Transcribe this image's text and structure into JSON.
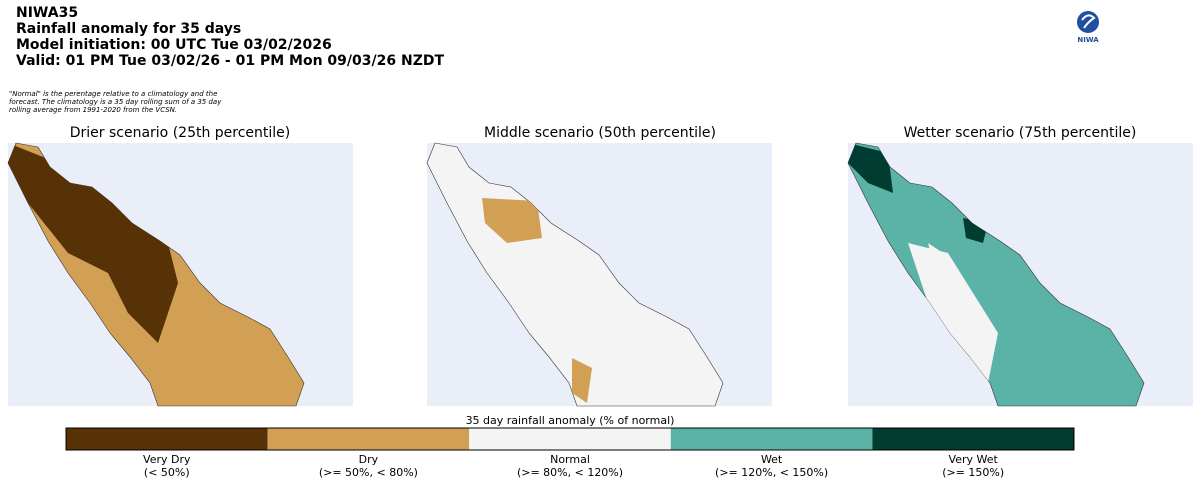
{
  "header": {
    "lines": [
      "NIWA35",
      "Rainfall anomaly for 35 days",
      "Model initiation: 00 UTC Tue 03/02/2026",
      "Valid: 01 PM Tue 03/02/26 - 01 PM Mon 09/03/26 NZDT"
    ],
    "note": [
      "\"Normal\" is the perentage relative to a climatology and the",
      "forecast. The climatology is a 35 day rolling sum of a 35 day",
      "rolling average from 1991-2020 from the VCSN."
    ],
    "logo": "NIWA"
  },
  "panels": [
    {
      "title": "Drier scenario (25th percentile)"
    },
    {
      "title": "Middle scenario (50th percentile)"
    },
    {
      "title": "Wetter scenario (75th percentile)"
    }
  ],
  "legend": {
    "title": "35 day rainfall anomaly (% of normal)",
    "items": [
      {
        "label": "Very Dry",
        "range": "(< 50%)",
        "color": "#573207"
      },
      {
        "label": "Dry",
        "range": "(>= 50%, < 80%)",
        "color": "#d1a055"
      },
      {
        "label": "Normal",
        "range": "(>= 80%, < 120%)",
        "color": "#f4f4f4"
      },
      {
        "label": "Wet",
        "range": "(>= 120%, < 150%)",
        "color": "#5ab3a6"
      },
      {
        "label": "Very Wet",
        "range": "(>= 150%)",
        "color": "#003c30"
      }
    ]
  }
}
